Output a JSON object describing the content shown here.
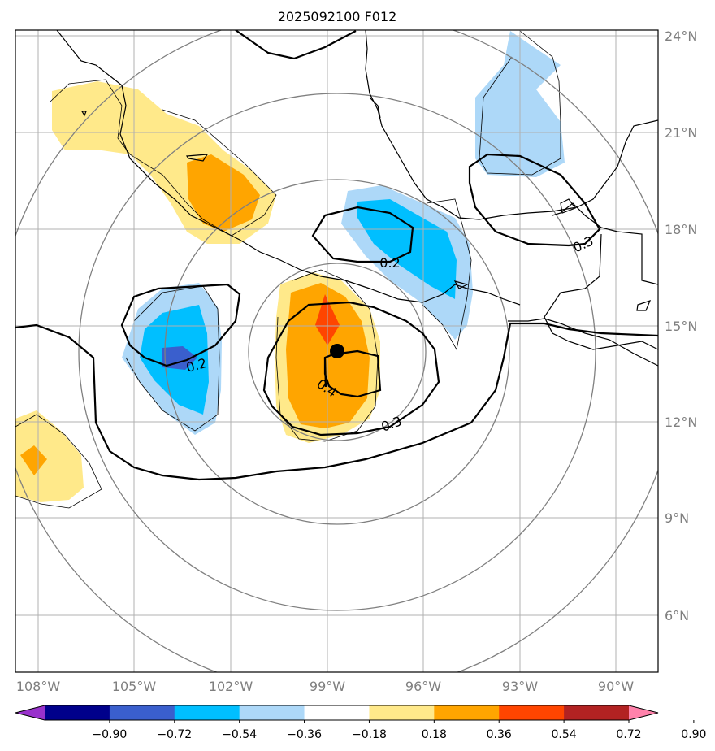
{
  "title": "2025092100 F012",
  "lat_labels": [
    "24°N",
    "21°N",
    "18°N",
    "15°N",
    "12°N",
    "9°N",
    "6°N"
  ],
  "lon_labels": [
    "108°W",
    "105°W",
    "102°W",
    "99°W",
    "96°W",
    "93°W",
    "90°W"
  ],
  "contour_labels": [
    "0.2",
    "0.2",
    "0.4",
    "0.3",
    "0.3"
  ],
  "colorbar": {
    "ticks": [
      "−0.90",
      "−0.72",
      "−0.54",
      "−0.36",
      "−0.18",
      "0.18",
      "0.36",
      "0.54",
      "0.72",
      "0.90"
    ],
    "colors": [
      "#9932cc",
      "#00008b",
      "#3a5fcd",
      "#00bfff",
      "#add8f8",
      "#ffffff",
      "#ffe98a",
      "#ffa500",
      "#ff4500",
      "#b22222",
      "#ff82ab"
    ]
  },
  "colors": {
    "grid": "#b0b0b0",
    "range_rings": "#808080",
    "coast": "#000000",
    "center_marker": "#000000"
  }
}
